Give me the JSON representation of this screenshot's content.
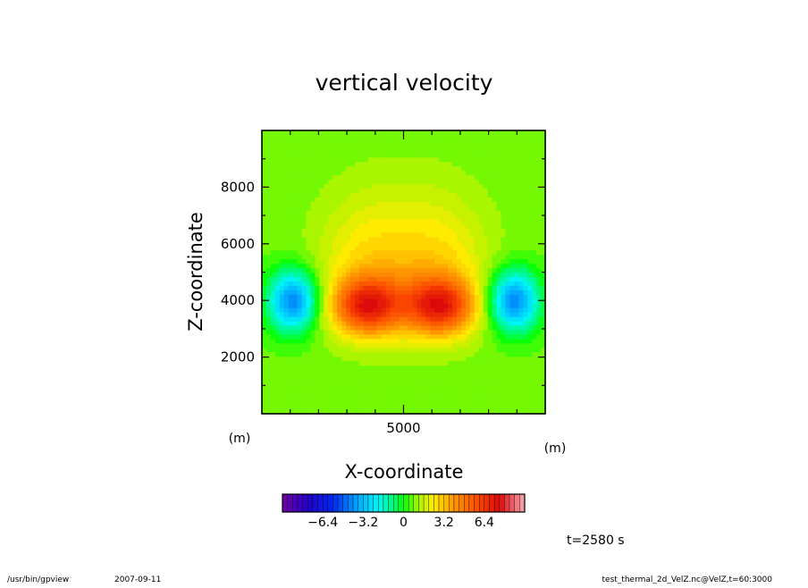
{
  "chart_data": {
    "type": "heatmap",
    "title": "vertical velocity",
    "xlabel": "X-coordinate",
    "ylabel": "Z-coordinate",
    "x_unit": "(m)",
    "y_unit": "(m)",
    "xlim": [
      0,
      10000
    ],
    "ylim": [
      0,
      10000
    ],
    "x_ticks": [
      5000
    ],
    "y_ticks": [
      2000,
      4000,
      6000,
      8000
    ],
    "colorbar": {
      "range": [
        -9.6,
        9.6
      ],
      "step": 0.4,
      "tick_values": [
        -6.4,
        -3.2,
        0,
        3.2,
        6.4
      ],
      "tick_labels": [
        "−6.4",
        "−3.2",
        "0",
        "3.2",
        "6.4"
      ]
    },
    "field_features": [
      {
        "kind": "updraft",
        "x": 3700,
        "z": 3800,
        "peak": 5.0
      },
      {
        "kind": "updraft",
        "x": 6300,
        "z": 3800,
        "peak": 5.0
      },
      {
        "kind": "downdraft",
        "x": 1100,
        "z": 4000,
        "peak": -5.0
      },
      {
        "kind": "downdraft",
        "x": 8900,
        "z": 4000,
        "peak": -5.0
      }
    ],
    "time_label": "t=2580 s"
  },
  "footer": {
    "program": "/usr/bin/gpview",
    "date": "2007-09-11",
    "source": "test_thermal_2d_VelZ.nc@VelZ,t=60:3000"
  }
}
